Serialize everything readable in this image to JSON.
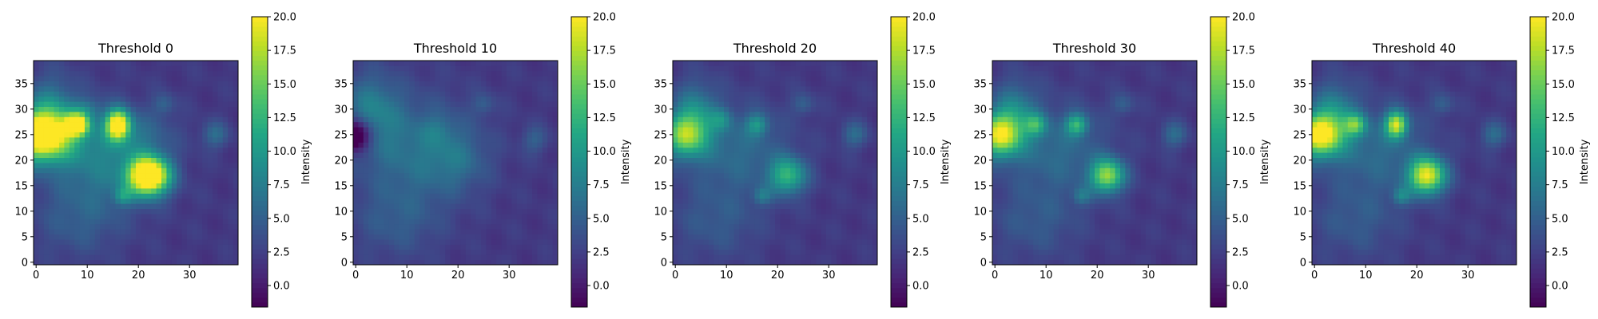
{
  "chart_data": [
    {
      "type": "heatmap",
      "title": "Threshold 0",
      "x_ticks": [
        0,
        10,
        20,
        30
      ],
      "y_ticks": [
        0,
        5,
        10,
        15,
        20,
        25,
        30,
        35
      ],
      "xlim": [
        0,
        39
      ],
      "ylim": [
        0,
        39
      ],
      "colorbar": {
        "label": "Intensity",
        "ticks": [
          "0.0",
          "2.5",
          "5.0",
          "7.5",
          "10.0",
          "12.5",
          "15.0",
          "17.5",
          "20.0"
        ],
        "range": [
          -1.6,
          20
        ]
      },
      "background": 2,
      "blobs": [
        {
          "x": 1,
          "y": 25,
          "sx": 4.2,
          "sy": 3.5,
          "amp": 22
        },
        {
          "x": 8,
          "y": 27,
          "sx": 1.6,
          "sy": 1.5,
          "amp": 16
        },
        {
          "x": 16,
          "y": 27,
          "sx": 1.6,
          "sy": 2.0,
          "amp": 19
        },
        {
          "x": 22,
          "y": 17,
          "sx": 2.8,
          "sy": 2.6,
          "amp": 24
        },
        {
          "x": 3,
          "y": 31,
          "sx": 3.5,
          "sy": 4.5,
          "amp": 4
        },
        {
          "x": 12,
          "y": 22,
          "sx": 7,
          "sy": 6,
          "amp": 4
        },
        {
          "x": 20,
          "y": 25,
          "sx": 5,
          "sy": 3,
          "amp": 2.5
        },
        {
          "x": 10,
          "y": 30,
          "sx": 2,
          "sy": 1.5,
          "amp": 3
        },
        {
          "x": 25,
          "y": 31,
          "sx": 1.5,
          "sy": 1.5,
          "amp": 3
        },
        {
          "x": 35,
          "y": 25,
          "sx": 1.8,
          "sy": 1.8,
          "amp": 4
        },
        {
          "x": 17,
          "y": 13,
          "sx": 1.2,
          "sy": 1.2,
          "amp": 5
        },
        {
          "x": 8,
          "y": 8,
          "sx": 6,
          "sy": 5,
          "amp": 2.5
        },
        {
          "x": 14,
          "y": 17,
          "sx": 7,
          "sy": 6,
          "amp": 2
        }
      ]
    },
    {
      "type": "heatmap",
      "title": "Threshold 10",
      "x_ticks": [
        0,
        10,
        20,
        30
      ],
      "y_ticks": [
        0,
        5,
        10,
        15,
        20,
        25,
        30,
        35
      ],
      "xlim": [
        0,
        39
      ],
      "ylim": [
        0,
        39
      ],
      "colorbar": {
        "label": "Intensity",
        "ticks": [
          "0.0",
          "2.5",
          "5.0",
          "7.5",
          "10.0",
          "12.5",
          "15.0",
          "17.5",
          "20.0"
        ],
        "range": [
          -1.6,
          20
        ]
      },
      "background": 2,
      "blobs": [
        {
          "x": 3,
          "y": 30,
          "sx": 4,
          "sy": 5,
          "amp": 5
        },
        {
          "x": 12,
          "y": 22,
          "sx": 8,
          "sy": 7,
          "amp": 4.5
        },
        {
          "x": 20,
          "y": 20,
          "sx": 4,
          "sy": 4,
          "amp": 2.5
        },
        {
          "x": 16,
          "y": 26,
          "sx": 2,
          "sy": 2,
          "amp": 2
        },
        {
          "x": 25,
          "y": 31,
          "sx": 1.5,
          "sy": 1.5,
          "amp": 2.5
        },
        {
          "x": 35,
          "y": 24,
          "sx": 1.8,
          "sy": 1.8,
          "amp": 3
        },
        {
          "x": 8,
          "y": 8,
          "sx": 6,
          "sy": 5,
          "amp": 2.5
        },
        {
          "x": 0,
          "y": 25,
          "sx": 2.2,
          "sy": 2.2,
          "amp": -10
        }
      ]
    },
    {
      "type": "heatmap",
      "title": "Threshold 20",
      "x_ticks": [
        0,
        10,
        20,
        30
      ],
      "y_ticks": [
        0,
        5,
        10,
        15,
        20,
        25,
        30,
        35
      ],
      "xlim": [
        0,
        39
      ],
      "ylim": [
        0,
        39
      ],
      "colorbar": {
        "label": "Intensity",
        "ticks": [
          "0.0",
          "2.5",
          "5.0",
          "7.5",
          "10.0",
          "12.5",
          "15.0",
          "17.5",
          "20.0"
        ],
        "range": [
          -1.6,
          20
        ]
      },
      "background": 2,
      "blobs": [
        {
          "x": 2,
          "y": 25,
          "sx": 3,
          "sy": 3,
          "amp": 13
        },
        {
          "x": 4,
          "y": 30,
          "sx": 3,
          "sy": 4,
          "amp": 5
        },
        {
          "x": 12,
          "y": 22,
          "sx": 7,
          "sy": 6,
          "amp": 4
        },
        {
          "x": 16,
          "y": 27,
          "sx": 1.5,
          "sy": 1.5,
          "amp": 6
        },
        {
          "x": 22,
          "y": 17,
          "sx": 2.5,
          "sy": 2.5,
          "amp": 10
        },
        {
          "x": 9,
          "y": 28,
          "sx": 1.5,
          "sy": 1.5,
          "amp": 4
        },
        {
          "x": 25,
          "y": 31,
          "sx": 1.5,
          "sy": 1.5,
          "amp": 3
        },
        {
          "x": 35,
          "y": 25,
          "sx": 1.8,
          "sy": 1.8,
          "amp": 4
        },
        {
          "x": 17,
          "y": 13,
          "sx": 1.2,
          "sy": 1.2,
          "amp": 4
        },
        {
          "x": 8,
          "y": 8,
          "sx": 6,
          "sy": 5,
          "amp": 2.5
        }
      ]
    },
    {
      "type": "heatmap",
      "title": "Threshold 30",
      "x_ticks": [
        0,
        10,
        20,
        30
      ],
      "y_ticks": [
        0,
        5,
        10,
        15,
        20,
        25,
        30,
        35
      ],
      "xlim": [
        0,
        39
      ],
      "ylim": [
        0,
        39
      ],
      "colorbar": {
        "label": "Intensity",
        "ticks": [
          "0.0",
          "2.5",
          "5.0",
          "7.5",
          "10.0",
          "12.5",
          "15.0",
          "17.5",
          "20.0"
        ],
        "range": [
          -1.6,
          20
        ]
      },
      "background": 2,
      "blobs": [
        {
          "x": 1,
          "y": 25,
          "sx": 3,
          "sy": 3,
          "amp": 16
        },
        {
          "x": 4,
          "y": 30,
          "sx": 3,
          "sy": 4,
          "amp": 5
        },
        {
          "x": 8,
          "y": 27,
          "sx": 1.5,
          "sy": 1.5,
          "amp": 7
        },
        {
          "x": 12,
          "y": 22,
          "sx": 7,
          "sy": 6,
          "amp": 4
        },
        {
          "x": 16,
          "y": 27,
          "sx": 1.5,
          "sy": 1.5,
          "amp": 9
        },
        {
          "x": 22,
          "y": 17,
          "sx": 2.3,
          "sy": 2.3,
          "amp": 14
        },
        {
          "x": 25,
          "y": 31,
          "sx": 1.5,
          "sy": 1.5,
          "amp": 3
        },
        {
          "x": 35,
          "y": 25,
          "sx": 1.8,
          "sy": 1.8,
          "amp": 4
        },
        {
          "x": 17,
          "y": 13,
          "sx": 1.2,
          "sy": 1.2,
          "amp": 4
        },
        {
          "x": 8,
          "y": 8,
          "sx": 6,
          "sy": 5,
          "amp": 2.5
        }
      ]
    },
    {
      "type": "heatmap",
      "title": "Threshold 40",
      "x_ticks": [
        0,
        10,
        20,
        30
      ],
      "y_ticks": [
        0,
        5,
        10,
        15,
        20,
        25,
        30,
        35
      ],
      "xlim": [
        0,
        39
      ],
      "ylim": [
        0,
        39
      ],
      "colorbar": {
        "label": "Intensity",
        "ticks": [
          "0.0",
          "2.5",
          "5.0",
          "7.5",
          "10.0",
          "12.5",
          "15.0",
          "17.5",
          "20.0"
        ],
        "range": [
          -1.6,
          20
        ]
      },
      "background": 2,
      "blobs": [
        {
          "x": 1,
          "y": 25,
          "sx": 3.2,
          "sy": 3,
          "amp": 18
        },
        {
          "x": 4,
          "y": 30,
          "sx": 3,
          "sy": 4,
          "amp": 5
        },
        {
          "x": 8,
          "y": 27,
          "sx": 1.5,
          "sy": 1.5,
          "amp": 9
        },
        {
          "x": 12,
          "y": 22,
          "sx": 7,
          "sy": 6,
          "amp": 4
        },
        {
          "x": 16,
          "y": 27,
          "sx": 1.5,
          "sy": 1.8,
          "amp": 15
        },
        {
          "x": 22,
          "y": 17,
          "sx": 2.5,
          "sy": 2.5,
          "amp": 17
        },
        {
          "x": 25,
          "y": 31,
          "sx": 1.5,
          "sy": 1.5,
          "amp": 3
        },
        {
          "x": 35,
          "y": 25,
          "sx": 1.8,
          "sy": 1.8,
          "amp": 4
        },
        {
          "x": 17,
          "y": 13,
          "sx": 1.2,
          "sy": 1.2,
          "amp": 5
        },
        {
          "x": 8,
          "y": 8,
          "sx": 6,
          "sy": 5,
          "amp": 2.5
        }
      ]
    }
  ]
}
